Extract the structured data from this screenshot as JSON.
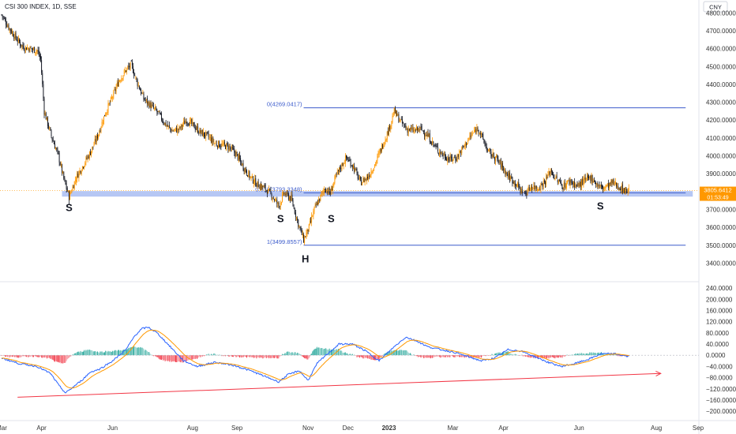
{
  "header": {
    "title": "CSI 300 INDEX, 1D, SSE"
  },
  "currency": "CNY",
  "price_axis": {
    "ticks": [
      "4800.0000",
      "4700.0000",
      "4600.0000",
      "4500.0000",
      "4400.0000",
      "4300.0000",
      "4200.0000",
      "4100.0000",
      "4000.0000",
      "3900.0000",
      "3700.0000",
      "3600.0000",
      "3500.0000",
      "3400.0000"
    ],
    "tick_values": [
      4800,
      4700,
      4600,
      4500,
      4400,
      4300,
      4200,
      4100,
      4000,
      3900,
      3700,
      3600,
      3500,
      3400
    ],
    "range": [
      3340,
      4850
    ],
    "last_price": "3805.6412",
    "last_price_value": 3805.64,
    "countdown": "01:53:49",
    "last_price_color": "#ff9800"
  },
  "macd_axis": {
    "ticks": [
      "240.0000",
      "200.0000",
      "160.0000",
      "120.0000",
      "80.0000",
      "40.0000",
      "0.0000",
      "−40.0000",
      "−80.0000",
      "−120.0000",
      "−160.0000",
      "−200.0000"
    ],
    "tick_values": [
      240,
      200,
      160,
      120,
      80,
      40,
      0,
      -40,
      -80,
      -120,
      -160,
      -200
    ],
    "range": [
      -225,
      260
    ]
  },
  "time_axis": {
    "labels": [
      "Mar",
      "Apr",
      "Jun",
      "Aug",
      "Sep",
      "Nov",
      "Dec",
      "2023",
      "Mar",
      "Apr",
      "Jun",
      "Aug",
      "Sep"
    ],
    "label_days": [
      0,
      45,
      125,
      215,
      265,
      345,
      390,
      436,
      508,
      565,
      650,
      737,
      784
    ]
  },
  "annotations": [
    {
      "label": "S",
      "day": 76,
      "price": 3690
    },
    {
      "label": "S",
      "day": 314,
      "price": 3630
    },
    {
      "label": "H",
      "day": 342,
      "price": 3405
    },
    {
      "label": "S",
      "day": 371,
      "price": 3630
    },
    {
      "label": "S",
      "day": 674,
      "price": 3700
    }
  ],
  "fibonacci": {
    "levels": [
      {
        "label": "0(4269.0417)",
        "value": 4269.0417
      },
      {
        "label": "0.618(3793.3348)",
        "value": 3793.3348
      },
      {
        "label": "1(3499.8557)",
        "value": 3499.8557
      }
    ],
    "from_day": 340,
    "to_day": 770
  },
  "support_zone": {
    "low": 3772,
    "high": 3803,
    "from_day": 68,
    "to_day": 778,
    "color": "#9db4f0"
  },
  "trendline": {
    "from": {
      "day": 18,
      "macd": -150
    },
    "to": {
      "day": 742,
      "macd": -65
    },
    "color": "#f23645"
  },
  "colors": {
    "up": "#26a69a",
    "down": "#f23645",
    "candle_up": "#ff9800",
    "candle_down": "#131722",
    "macd": "#2962ff",
    "signal": "#ff9800",
    "fib_line": "#3d5ccc"
  },
  "chart_data": {
    "type": "candlestick",
    "title": "CSI 300 INDEX, 1D, SSE",
    "x_unit": "trading-day index from chart start (early Mar 2022)",
    "price_anchors": [
      [
        0,
        4790
      ],
      [
        8,
        4720
      ],
      [
        16,
        4660
      ],
      [
        24,
        4610
      ],
      [
        32,
        4600
      ],
      [
        40,
        4590
      ],
      [
        44,
        4540
      ],
      [
        48,
        4250
      ],
      [
        56,
        4110
      ],
      [
        64,
        4000
      ],
      [
        70,
        3870
      ],
      [
        76,
        3770
      ],
      [
        84,
        3880
      ],
      [
        92,
        3950
      ],
      [
        100,
        4020
      ],
      [
        108,
        4110
      ],
      [
        116,
        4230
      ],
      [
        124,
        4320
      ],
      [
        132,
        4420
      ],
      [
        140,
        4480
      ],
      [
        146,
        4510
      ],
      [
        152,
        4420
      ],
      [
        160,
        4320
      ],
      [
        168,
        4280
      ],
      [
        176,
        4240
      ],
      [
        184,
        4180
      ],
      [
        192,
        4140
      ],
      [
        200,
        4150
      ],
      [
        208,
        4200
      ],
      [
        216,
        4170
      ],
      [
        224,
        4130
      ],
      [
        232,
        4110
      ],
      [
        240,
        4070
      ],
      [
        248,
        4060
      ],
      [
        256,
        4050
      ],
      [
        264,
        4010
      ],
      [
        272,
        3940
      ],
      [
        280,
        3880
      ],
      [
        288,
        3840
      ],
      [
        296,
        3820
      ],
      [
        304,
        3780
      ],
      [
        312,
        3720
      ],
      [
        318,
        3790
      ],
      [
        326,
        3760
      ],
      [
        334,
        3620
      ],
      [
        340,
        3530
      ],
      [
        346,
        3600
      ],
      [
        352,
        3700
      ],
      [
        358,
        3760
      ],
      [
        364,
        3820
      ],
      [
        370,
        3790
      ],
      [
        376,
        3880
      ],
      [
        382,
        3940
      ],
      [
        388,
        3990
      ],
      [
        396,
        3940
      ],
      [
        404,
        3850
      ],
      [
        412,
        3880
      ],
      [
        420,
        3950
      ],
      [
        428,
        4050
      ],
      [
        436,
        4150
      ],
      [
        442,
        4250
      ],
      [
        448,
        4200
      ],
      [
        456,
        4150
      ],
      [
        464,
        4140
      ],
      [
        472,
        4150
      ],
      [
        480,
        4110
      ],
      [
        488,
        4050
      ],
      [
        496,
        4010
      ],
      [
        504,
        3980
      ],
      [
        512,
        3990
      ],
      [
        520,
        4050
      ],
      [
        528,
        4110
      ],
      [
        536,
        4160
      ],
      [
        542,
        4090
      ],
      [
        548,
        4020
      ],
      [
        556,
        3990
      ],
      [
        562,
        3950
      ],
      [
        570,
        3890
      ],
      [
        578,
        3850
      ],
      [
        584,
        3810
      ],
      [
        590,
        3790
      ],
      [
        596,
        3830
      ],
      [
        604,
        3820
      ],
      [
        612,
        3860
      ],
      [
        618,
        3920
      ],
      [
        624,
        3870
      ],
      [
        632,
        3830
      ],
      [
        640,
        3860
      ],
      [
        648,
        3830
      ],
      [
        656,
        3860
      ],
      [
        664,
        3880
      ],
      [
        670,
        3840
      ],
      [
        676,
        3820
      ],
      [
        682,
        3830
      ],
      [
        688,
        3850
      ],
      [
        694,
        3830
      ],
      [
        700,
        3810
      ],
      [
        706,
        3805
      ]
    ],
    "macd_anchors": [
      [
        0,
        -10
      ],
      [
        20,
        -30
      ],
      [
        40,
        -40
      ],
      [
        55,
        -65
      ],
      [
        65,
        -110
      ],
      [
        72,
        -135
      ],
      [
        78,
        -120
      ],
      [
        90,
        -90
      ],
      [
        100,
        -60
      ],
      [
        110,
        -50
      ],
      [
        125,
        -20
      ],
      [
        140,
        20
      ],
      [
        150,
        70
      ],
      [
        158,
        95
      ],
      [
        165,
        100
      ],
      [
        175,
        80
      ],
      [
        190,
        30
      ],
      [
        205,
        -20
      ],
      [
        220,
        -40
      ],
      [
        240,
        -25
      ],
      [
        260,
        -35
      ],
      [
        280,
        -55
      ],
      [
        300,
        -80
      ],
      [
        312,
        -95
      ],
      [
        322,
        -70
      ],
      [
        335,
        -55
      ],
      [
        345,
        -90
      ],
      [
        355,
        -30
      ],
      [
        365,
        0
      ],
      [
        380,
        40
      ],
      [
        395,
        40
      ],
      [
        410,
        15
      ],
      [
        425,
        -20
      ],
      [
        440,
        25
      ],
      [
        455,
        65
      ],
      [
        468,
        50
      ],
      [
        480,
        30
      ],
      [
        495,
        20
      ],
      [
        510,
        10
      ],
      [
        525,
        -5
      ],
      [
        540,
        -20
      ],
      [
        555,
        -10
      ],
      [
        570,
        20
      ],
      [
        585,
        15
      ],
      [
        600,
        -5
      ],
      [
        615,
        -25
      ],
      [
        630,
        -40
      ],
      [
        645,
        -30
      ],
      [
        660,
        -15
      ],
      [
        675,
        5
      ],
      [
        690,
        5
      ],
      [
        706,
        -5
      ]
    ],
    "ylim_price": [
      3340,
      4850
    ],
    "ylim_macd": [
      -225,
      260
    ]
  }
}
